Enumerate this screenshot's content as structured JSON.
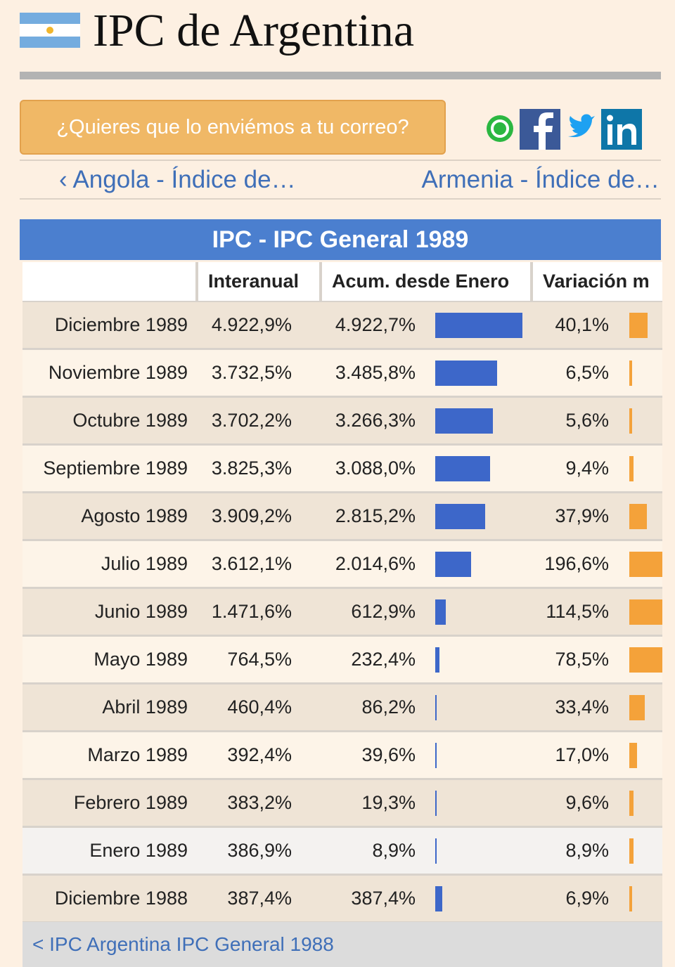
{
  "header": {
    "title": "IPC de Argentina"
  },
  "email_button": "¿Quieres que lo enviémos a tu correo?",
  "nav": {
    "prev": "‹ Angola - Índice de…",
    "next": "Armenia - Índice de…"
  },
  "table": {
    "title": "IPC - IPC General 1989",
    "columns": [
      "Interanual",
      "Acum. desde Enero",
      "Variación m"
    ],
    "rows": [
      {
        "month": "Diciembre 1989",
        "interanual": "4.922,9%",
        "acum": {
          "value": 4922.7,
          "label": "4.922,7%"
        },
        "variacion": {
          "value": 40.1,
          "label": "40,1%"
        }
      },
      {
        "month": "Noviembre 1989",
        "interanual": "3.732,5%",
        "acum": {
          "value": 3485.8,
          "label": "3.485,8%"
        },
        "variacion": {
          "value": 6.5,
          "label": "6,5%"
        }
      },
      {
        "month": "Octubre 1989",
        "interanual": "3.702,2%",
        "acum": {
          "value": 3266.3,
          "label": "3.266,3%"
        },
        "variacion": {
          "value": 5.6,
          "label": "5,6%"
        }
      },
      {
        "month": "Septiembre 1989",
        "interanual": "3.825,3%",
        "acum": {
          "value": 3088.0,
          "label": "3.088,0%"
        },
        "variacion": {
          "value": 9.4,
          "label": "9,4%"
        }
      },
      {
        "month": "Agosto 1989",
        "interanual": "3.909,2%",
        "acum": {
          "value": 2815.2,
          "label": "2.815,2%"
        },
        "variacion": {
          "value": 37.9,
          "label": "37,9%"
        }
      },
      {
        "month": "Julio 1989",
        "interanual": "3.612,1%",
        "acum": {
          "value": 2014.6,
          "label": "2.014,6%"
        },
        "variacion": {
          "value": 196.6,
          "label": "196,6%"
        }
      },
      {
        "month": "Junio 1989",
        "interanual": "1.471,6%",
        "acum": {
          "value": 612.9,
          "label": "612,9%"
        },
        "variacion": {
          "value": 114.5,
          "label": "114,5%"
        }
      },
      {
        "month": "Mayo 1989",
        "interanual": "764,5%",
        "acum": {
          "value": 232.4,
          "label": "232,4%"
        },
        "variacion": {
          "value": 78.5,
          "label": "78,5%"
        }
      },
      {
        "month": "Abril 1989",
        "interanual": "460,4%",
        "acum": {
          "value": 86.2,
          "label": "86,2%"
        },
        "variacion": {
          "value": 33.4,
          "label": "33,4%"
        }
      },
      {
        "month": "Marzo 1989",
        "interanual": "392,4%",
        "acum": {
          "value": 39.6,
          "label": "39,6%"
        },
        "variacion": {
          "value": 17.0,
          "label": "17,0%"
        }
      },
      {
        "month": "Febrero 1989",
        "interanual": "383,2%",
        "acum": {
          "value": 19.3,
          "label": "19,3%"
        },
        "variacion": {
          "value": 9.6,
          "label": "9,6%"
        }
      },
      {
        "month": "Enero 1989",
        "interanual": "386,9%",
        "acum": {
          "value": 8.9,
          "label": "8,9%"
        },
        "variacion": {
          "value": 8.9,
          "label": "8,9%"
        }
      },
      {
        "month": "Diciembre 1988",
        "interanual": "387,4%",
        "acum": {
          "value": 387.4,
          "label": "387,4%"
        },
        "variacion": {
          "value": 6.9,
          "label": "6,9%"
        }
      }
    ],
    "footer_link": "< IPC Argentina IPC General 1988"
  }
}
